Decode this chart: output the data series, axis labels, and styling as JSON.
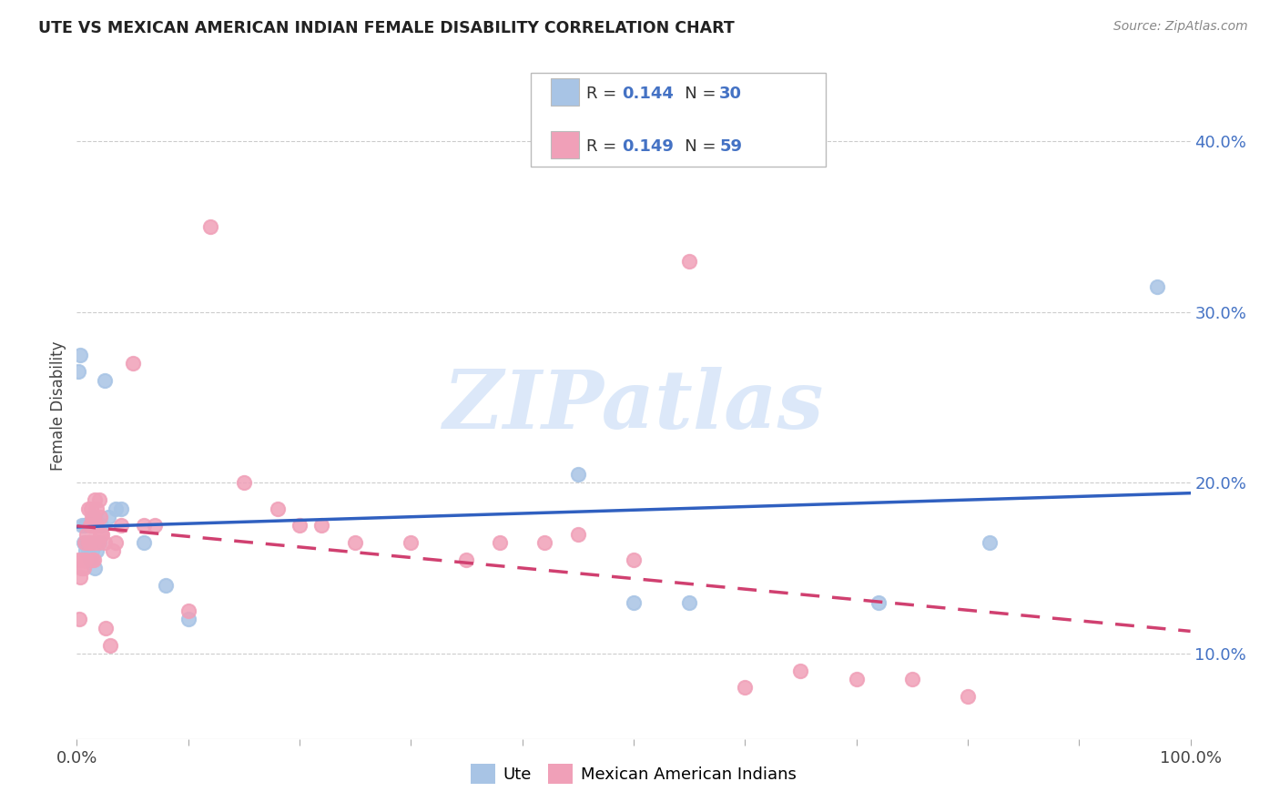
{
  "title": "UTE VS MEXICAN AMERICAN INDIAN FEMALE DISABILITY CORRELATION CHART",
  "source": "Source: ZipAtlas.com",
  "ylabel": "Female Disability",
  "watermark": "ZIPatlas",
  "ute_color": "#a8c4e5",
  "mex_color": "#f0a0b8",
  "ute_line_color": "#3060c0",
  "mex_line_color": "#d04070",
  "legend_R_ute": "0.144",
  "legend_N_ute": "30",
  "legend_R_mex": "0.149",
  "legend_N_mex": "59",
  "ute_points_x": [
    0.001,
    0.003,
    0.005,
    0.006,
    0.007,
    0.008,
    0.009,
    0.01,
    0.011,
    0.012,
    0.013,
    0.014,
    0.015,
    0.016,
    0.018,
    0.02,
    0.022,
    0.025,
    0.028,
    0.035,
    0.04,
    0.06,
    0.08,
    0.1,
    0.45,
    0.5,
    0.55,
    0.72,
    0.82,
    0.97
  ],
  "ute_points_y": [
    0.265,
    0.275,
    0.175,
    0.165,
    0.175,
    0.16,
    0.165,
    0.16,
    0.165,
    0.155,
    0.155,
    0.16,
    0.18,
    0.15,
    0.16,
    0.165,
    0.175,
    0.26,
    0.18,
    0.185,
    0.185,
    0.165,
    0.14,
    0.12,
    0.205,
    0.13,
    0.13,
    0.13,
    0.165,
    0.315
  ],
  "mex_points_x": [
    0.001,
    0.002,
    0.003,
    0.004,
    0.005,
    0.006,
    0.007,
    0.008,
    0.009,
    0.01,
    0.01,
    0.011,
    0.012,
    0.012,
    0.013,
    0.013,
    0.014,
    0.014,
    0.015,
    0.015,
    0.015,
    0.016,
    0.016,
    0.017,
    0.018,
    0.018,
    0.019,
    0.02,
    0.021,
    0.022,
    0.023,
    0.025,
    0.026,
    0.03,
    0.032,
    0.035,
    0.04,
    0.05,
    0.06,
    0.07,
    0.1,
    0.12,
    0.15,
    0.18,
    0.2,
    0.22,
    0.25,
    0.3,
    0.35,
    0.38,
    0.42,
    0.45,
    0.5,
    0.55,
    0.6,
    0.65,
    0.7,
    0.75,
    0.8
  ],
  "mex_points_y": [
    0.155,
    0.12,
    0.145,
    0.15,
    0.155,
    0.15,
    0.165,
    0.155,
    0.17,
    0.165,
    0.185,
    0.165,
    0.165,
    0.175,
    0.175,
    0.185,
    0.18,
    0.155,
    0.155,
    0.165,
    0.18,
    0.175,
    0.19,
    0.175,
    0.185,
    0.175,
    0.165,
    0.19,
    0.18,
    0.17,
    0.17,
    0.165,
    0.115,
    0.105,
    0.16,
    0.165,
    0.175,
    0.27,
    0.175,
    0.175,
    0.125,
    0.35,
    0.2,
    0.185,
    0.175,
    0.175,
    0.165,
    0.165,
    0.155,
    0.165,
    0.165,
    0.17,
    0.155,
    0.33,
    0.08,
    0.09,
    0.085,
    0.085,
    0.075
  ],
  "xlim": [
    0.0,
    1.0
  ],
  "ylim": [
    0.05,
    0.44
  ],
  "yticks": [
    0.1,
    0.2,
    0.3,
    0.4
  ],
  "ytick_labels": [
    "10.0%",
    "20.0%",
    "30.0%",
    "40.0%"
  ],
  "background_color": "#ffffff",
  "grid_color": "#cccccc"
}
